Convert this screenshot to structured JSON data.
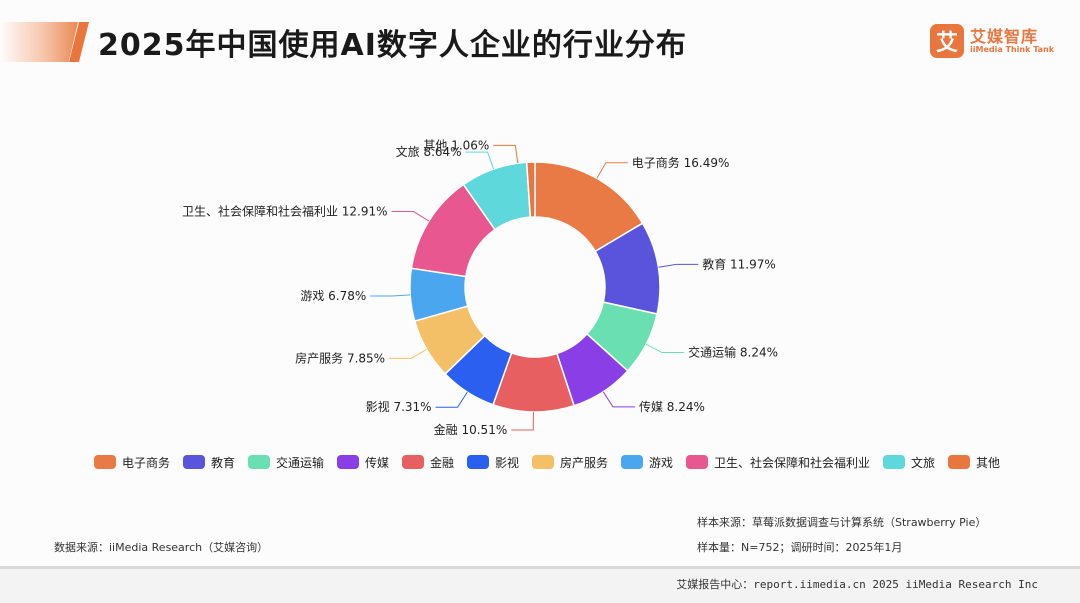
{
  "header": {
    "title": "2025年中国使用AI数字人企业的行业分布",
    "logo_mark": "艾",
    "logo_cn": "艾媒智库",
    "logo_en": "iiMedia Think Tank"
  },
  "chart_data": {
    "type": "pie",
    "donut": true,
    "title": "2025年中国使用AI数字人企业的行业分布",
    "unit": "%",
    "legend_position": "bottom",
    "slices": [
      {
        "name": "电子商务",
        "value": 16.49,
        "label": "电子商务 16.49%",
        "color": "#ea7a45"
      },
      {
        "name": "教育",
        "value": 11.97,
        "label": "教育 11.97%",
        "color": "#5a54dc"
      },
      {
        "name": "交通运输",
        "value": 8.24,
        "label": "交通运输 8.24%",
        "color": "#69dfb2"
      },
      {
        "name": "传媒",
        "value": 8.24,
        "label": "传媒 8.24%",
        "color": "#8a3ee6"
      },
      {
        "name": "金融",
        "value": 10.51,
        "label": "金融 10.51%",
        "color": "#e85f62"
      },
      {
        "name": "影视",
        "value": 7.31,
        "label": "影视 7.31%",
        "color": "#2a5ff0"
      },
      {
        "name": "房产服务",
        "value": 7.85,
        "label": "房产服务 7.85%",
        "color": "#f3c067"
      },
      {
        "name": "游戏",
        "value": 6.78,
        "label": "游戏 6.78%",
        "color": "#4aa6ee"
      },
      {
        "name": "卫生、社会保障和社会福利业",
        "value": 12.91,
        "label": "卫生、社会保障和社会福利业 12.91%",
        "color": "#e8578f"
      },
      {
        "name": "文旅",
        "value": 8.64,
        "label": "文旅 8.64%",
        "color": "#5fd8dc"
      },
      {
        "name": "其他",
        "value": 1.06,
        "label": "其他 1.06%",
        "color": "#e8763e"
      }
    ]
  },
  "sources": {
    "data_source": "数据来源：iiMedia Research（艾媒咨询）",
    "sample_source": "样本来源：草莓派数据调查与计算系统（Strawberry Pie）",
    "sample_size": "样本量：N=752；调研时间：2025年1月"
  },
  "footer": {
    "text": "艾媒报告中心：report.iimedia.cn   2025 iiMedia Research Inc"
  }
}
